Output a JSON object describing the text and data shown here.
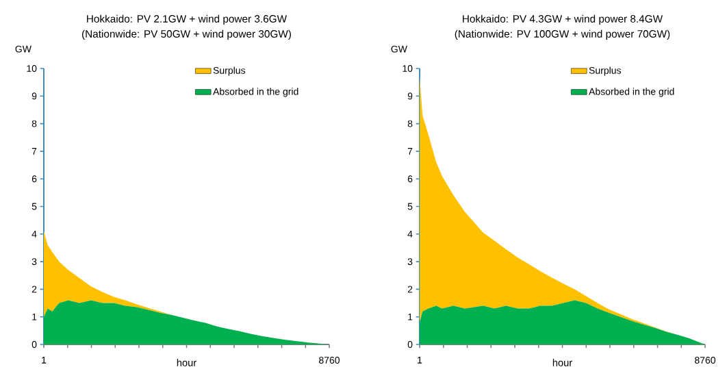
{
  "chart_data": [
    {
      "type": "area",
      "title": "Hokkaido: PV 2.1GW + wind power 3.6GW",
      "subtitle": "(Nationwide: PV 50GW + wind power 30GW)",
      "xlabel": "hour",
      "ylabel": "GW",
      "stacked": true,
      "legend": "top right",
      "xlim": [
        1,
        8760
      ],
      "ylim": [
        0,
        10
      ],
      "yticks": [
        0,
        1,
        2,
        3,
        4,
        5,
        6,
        7,
        8,
        9,
        10
      ],
      "xticks": [
        1,
        {
          "value": 731,
          "label": null
        },
        {
          "value": 1461,
          "label": null
        },
        {
          "value": 2191,
          "label": null
        },
        {
          "value": 2921,
          "label": null
        },
        {
          "value": 3651,
          "label": null
        },
        {
          "value": 4381,
          "label": null
        },
        {
          "value": 5111,
          "label": null
        },
        {
          "value": 5841,
          "label": null
        },
        {
          "value": 6571,
          "label": null
        },
        {
          "value": 7301,
          "label": null
        },
        {
          "value": 8031,
          "label": null
        },
        8760
      ],
      "x": [
        1,
        120,
        260,
        470,
        750,
        1100,
        1450,
        1800,
        2160,
        2500,
        2860,
        3210,
        3560,
        3910,
        4260,
        4610,
        4960,
        5320,
        5670,
        6020,
        6370,
        6720,
        7070,
        7420,
        7770,
        8120,
        8470,
        8760
      ],
      "series": [
        {
          "name": "Absorbed in the grid",
          "color": "#00b050",
          "values": [
            1.0,
            1.3,
            1.2,
            1.5,
            1.6,
            1.5,
            1.6,
            1.5,
            1.5,
            1.4,
            1.35,
            1.25,
            1.15,
            1.07,
            0.97,
            0.87,
            0.78,
            0.65,
            0.56,
            0.48,
            0.38,
            0.3,
            0.23,
            0.17,
            0.12,
            0.07,
            0.03,
            0
          ]
        },
        {
          "name": "Surplus",
          "color": "#ffc000",
          "values": [
            3.1,
            2.3,
            2.15,
            1.5,
            1.1,
            0.9,
            0.5,
            0.4,
            0.22,
            0.2,
            0.1,
            0.07,
            0.05,
            0,
            0,
            0,
            0,
            0,
            0,
            0,
            0,
            0,
            0,
            0,
            0,
            0,
            0,
            0
          ]
        }
      ]
    },
    {
      "type": "area",
      "title": "Hokkaido: PV 4.3GW + wind power 8.4GW",
      "subtitle": "(Nationwide: PV 100GW + wind power 70GW)",
      "xlabel": "hour",
      "ylabel": "GW",
      "stacked": true,
      "legend": "top right",
      "xlim": [
        1,
        8760
      ],
      "ylim": [
        0,
        10
      ],
      "yticks": [
        0,
        1,
        2,
        3,
        4,
        5,
        6,
        7,
        8,
        9,
        10
      ],
      "xticks": [
        1,
        {
          "value": 731,
          "label": null
        },
        {
          "value": 1461,
          "label": null
        },
        {
          "value": 2191,
          "label": null
        },
        {
          "value": 2921,
          "label": null
        },
        {
          "value": 3651,
          "label": null
        },
        {
          "value": 4381,
          "label": null
        },
        {
          "value": 5111,
          "label": null
        },
        {
          "value": 5841,
          "label": null
        },
        {
          "value": 6571,
          "label": null
        },
        {
          "value": 7301,
          "label": null
        },
        {
          "value": 8031,
          "label": null
        },
        8760
      ],
      "x": [
        1,
        90,
        270,
        510,
        690,
        1040,
        1390,
        1950,
        2300,
        2650,
        3010,
        3360,
        3710,
        4060,
        4410,
        4760,
        5110,
        5460,
        5810,
        6160,
        6520,
        6870,
        7220,
        7570,
        7920,
        8270,
        8760
      ],
      "series": [
        {
          "name": "Absorbed in the grid",
          "color": "#00b050",
          "values": [
            0.8,
            1.2,
            1.3,
            1.4,
            1.3,
            1.4,
            1.3,
            1.4,
            1.3,
            1.4,
            1.3,
            1.3,
            1.4,
            1.4,
            1.5,
            1.6,
            1.5,
            1.3,
            1.15,
            1.0,
            0.85,
            0.72,
            0.6,
            0.46,
            0.35,
            0.22,
            0
          ]
        },
        {
          "name": "Surplus",
          "color": "#ffc000",
          "values": [
            8.9,
            7.1,
            6.3,
            5.2,
            4.8,
            4.0,
            3.5,
            2.65,
            2.45,
            2.05,
            1.85,
            1.6,
            1.25,
            1.02,
            0.7,
            0.4,
            0.25,
            0.2,
            0.12,
            0.1,
            0.07,
            0.05,
            0.02,
            0.01,
            0,
            0,
            0
          ]
        }
      ]
    }
  ]
}
